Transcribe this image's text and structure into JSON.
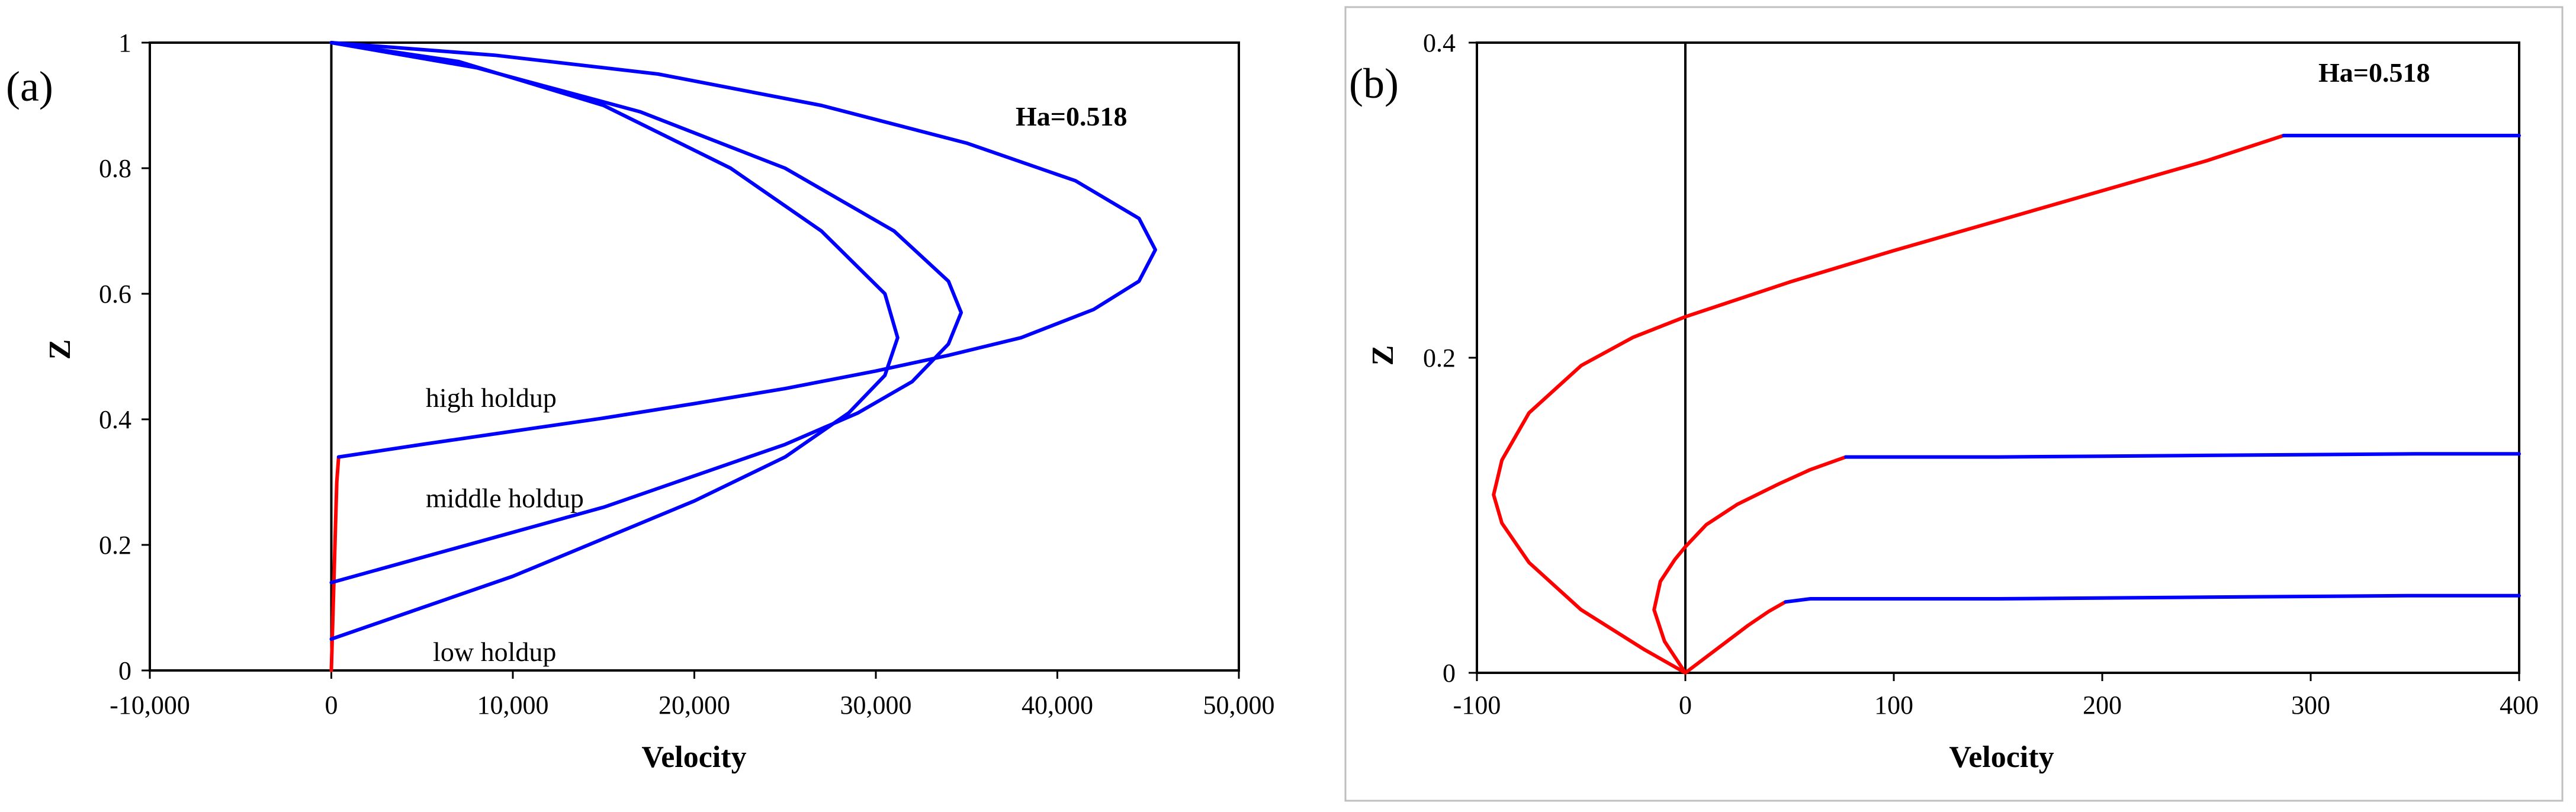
{
  "chart_data": [
    {
      "panel_label": "(a)",
      "type": "line",
      "annotation_box": "Ha=0.518",
      "xlabel": "Velocity",
      "ylabel": "Z",
      "xlim": [
        -10000,
        50000
      ],
      "ylim": [
        0,
        1
      ],
      "xticks": [
        "-10,000",
        "0",
        "10,000",
        "20,000",
        "30,000",
        "40,000",
        "50,000"
      ],
      "xtick_values": [
        -10000,
        0,
        10000,
        20000,
        30000,
        40000,
        50000
      ],
      "yticks": [
        "0",
        "0.2",
        "0.4",
        "0.6",
        "0.8",
        "1"
      ],
      "ytick_values": [
        0,
        0.2,
        0.4,
        0.6,
        0.8,
        1
      ],
      "zero_line": true,
      "grid": false,
      "text_labels": [
        {
          "text": "high holdup",
          "x": 5200,
          "y": 0.42
        },
        {
          "text": "middle holdup",
          "x": 5200,
          "y": 0.26
        },
        {
          "text": "low holdup",
          "x": 5600,
          "y": 0.015
        }
      ],
      "series": [
        {
          "color": "#ff0000",
          "x": [
            0,
            100,
            200,
            300,
            400
          ],
          "y": [
            0,
            0.1,
            0.2,
            0.3,
            0.34
          ]
        },
        {
          "color": "#0000ff",
          "x": [
            400,
            5000,
            10000,
            15000,
            20000,
            25000,
            30000,
            34000,
            38000,
            42000,
            44500,
            45400,
            44500,
            41000,
            35000,
            27000,
            18000,
            9000,
            0
          ],
          "y": [
            0.34,
            0.36,
            0.381,
            0.402,
            0.425,
            0.449,
            0.477,
            0.502,
            0.53,
            0.575,
            0.62,
            0.67,
            0.72,
            0.78,
            0.84,
            0.9,
            0.95,
            0.98,
            1
          ]
        },
        {
          "color": "#0000ff",
          "x": [
            0,
            5000,
            10000,
            15000,
            20000,
            25000,
            29000,
            32000,
            34000,
            34700,
            34000,
            31000,
            25000,
            17000,
            8000,
            0
          ],
          "y": [
            0.14,
            0.18,
            0.22,
            0.26,
            0.31,
            0.36,
            0.41,
            0.46,
            0.52,
            0.57,
            0.62,
            0.7,
            0.8,
            0.89,
            0.96,
            1
          ]
        },
        {
          "color": "#0000ff",
          "x": [
            0,
            5000,
            10000,
            15000,
            20000,
            25000,
            28500,
            30500,
            31200,
            30500,
            27000,
            22000,
            15000,
            7000,
            0
          ],
          "y": [
            0.05,
            0.1,
            0.15,
            0.21,
            0.27,
            0.34,
            0.41,
            0.47,
            0.53,
            0.6,
            0.7,
            0.8,
            0.9,
            0.97,
            1
          ]
        }
      ]
    },
    {
      "panel_label": "(b)",
      "type": "line",
      "annotation_box": "Ha=0.518",
      "xlabel": "Velocity",
      "ylabel": "Z",
      "xlim": [
        -100,
        400
      ],
      "ylim": [
        0,
        0.4
      ],
      "xticks": [
        "-100",
        "0",
        "100",
        "200",
        "300",
        "400"
      ],
      "xtick_values": [
        -100,
        0,
        100,
        200,
        300,
        400
      ],
      "yticks": [
        "0",
        "0.2",
        "0.4"
      ],
      "ytick_values": [
        0,
        0.2,
        0.4
      ],
      "zero_line": true,
      "grid": false,
      "series": [
        {
          "color": "#ff0000",
          "x": [
            0,
            -20,
            -50,
            -75,
            -88,
            -92,
            -88,
            -75,
            -50,
            -25,
            0,
            50,
            100,
            150,
            200,
            250,
            287
          ],
          "y": [
            0,
            0.015,
            0.04,
            0.07,
            0.095,
            0.113,
            0.135,
            0.165,
            0.195,
            0.213,
            0.226,
            0.248,
            0.268,
            0.287,
            0.306,
            0.325,
            0.341
          ]
        },
        {
          "color": "#0000ff",
          "x": [
            287,
            320,
            360,
            400
          ],
          "y": [
            0.341,
            0.341,
            0.341,
            0.341
          ]
        },
        {
          "color": "#ff0000",
          "x": [
            0,
            -10,
            -15,
            -12,
            -5,
            0,
            10,
            25,
            45,
            60,
            77
          ],
          "y": [
            0,
            0.02,
            0.04,
            0.058,
            0.072,
            0.08,
            0.094,
            0.107,
            0.12,
            0.129,
            0.137
          ]
        },
        {
          "color": "#0000ff",
          "x": [
            77,
            150,
            250,
            350,
            400
          ],
          "y": [
            0.137,
            0.137,
            0.138,
            0.139,
            0.139
          ]
        },
        {
          "color": "#ff0000",
          "x": [
            0,
            10,
            20,
            30,
            40,
            48
          ],
          "y": [
            0,
            0.01,
            0.02,
            0.03,
            0.039,
            0.045
          ]
        },
        {
          "color": "#0000ff",
          "x": [
            48,
            60,
            150,
            250,
            350,
            400
          ],
          "y": [
            0.045,
            0.047,
            0.047,
            0.048,
            0.049,
            0.049
          ]
        }
      ]
    }
  ]
}
